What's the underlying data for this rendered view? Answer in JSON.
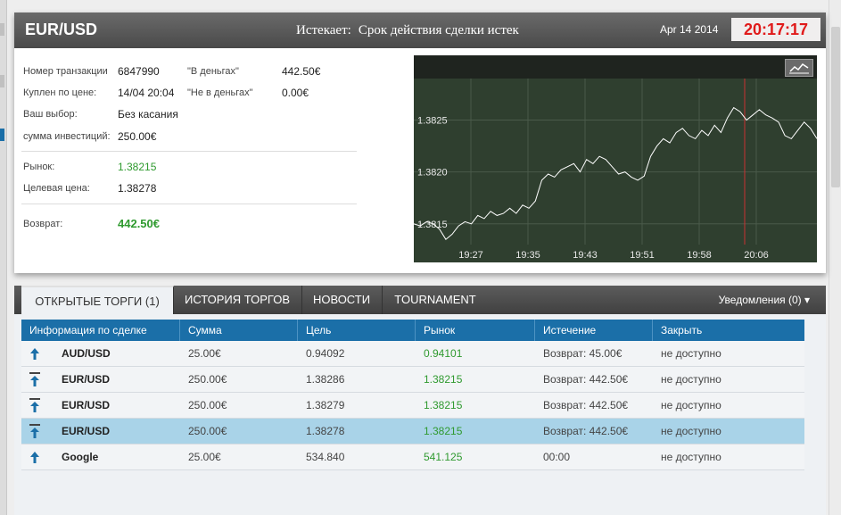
{
  "header": {
    "pair": "EUR/USD",
    "expires_label": "Истекает:",
    "expires_text": "Срок действия сделки истек",
    "date": "Apr 14 2014",
    "clock": "20:17:17"
  },
  "details": {
    "txn_label": "Номер транзакции",
    "txn_value": "6847990",
    "bought_label": "Куплен по цене:",
    "bought_value": "14/04 20:04",
    "choice_label": "Ваш выбор:",
    "choice_value": "Без касания",
    "invest_label": "сумма инвестиций:",
    "invest_value": "250.00€",
    "in_money_label": "\"В деньгах\"",
    "in_money_value": "442.50€",
    "out_money_label": "\"Не в деньгах\"",
    "out_money_value": "0.00€",
    "market_label": "Рынок:",
    "market_value": "1.38215",
    "target_label": "Целевая цена:",
    "target_value": "1.38278",
    "return_label": "Возврат:",
    "return_value": "442.50€"
  },
  "chart_data": {
    "type": "line",
    "y_ticks": [
      "1.3825",
      "1.3820",
      "1.3815"
    ],
    "x_ticks": [
      "19:27",
      "19:35",
      "19:43",
      "19:51",
      "19:58",
      "20:06"
    ],
    "ylim": [
      1.3813,
      1.3829
    ],
    "marker_x": "20:04",
    "series": [
      {
        "values": [
          1.3815,
          1.38148,
          1.38152,
          1.3815,
          1.38145,
          1.38135,
          1.3814,
          1.38148,
          1.38152,
          1.3815,
          1.38158,
          1.38155,
          1.38162,
          1.38158,
          1.3816,
          1.38165,
          1.3816,
          1.38168,
          1.38165,
          1.38172,
          1.38192,
          1.38198,
          1.38195,
          1.38202,
          1.38205,
          1.38208,
          1.382,
          1.38212,
          1.38208,
          1.38215,
          1.38212,
          1.38205,
          1.38198,
          1.382,
          1.38195,
          1.38192,
          1.38196,
          1.38215,
          1.38225,
          1.38232,
          1.38228,
          1.38238,
          1.38242,
          1.38235,
          1.38232,
          1.3824,
          1.38235,
          1.38245,
          1.38238,
          1.38252,
          1.38262,
          1.38258,
          1.3825,
          1.38255,
          1.3826,
          1.38255,
          1.38252,
          1.38248,
          1.38235,
          1.38232,
          1.3824,
          1.38248,
          1.38242,
          1.38232
        ]
      }
    ]
  },
  "tabs": [
    {
      "label": "ОТКРЫТЫЕ ТОРГИ (1)"
    },
    {
      "label": "ИСТОРИЯ ТОРГОВ"
    },
    {
      "label": "НОВОСТИ"
    },
    {
      "label": "TOURNAMENT"
    }
  ],
  "notifications": "Уведомления (0) ▾",
  "table": {
    "columns": [
      "Информация по сделке",
      "Сумма",
      "Цель",
      "Рынок",
      "Истечение",
      "Закрыть"
    ],
    "rows": [
      {
        "asset": "AUD/USD",
        "amount": "25.00€",
        "target": "0.94092",
        "market": "0.94101",
        "expiry": "Возврат: 45.00€",
        "close": "не доступно",
        "arrow": "up"
      },
      {
        "asset": "EUR/USD",
        "amount": "250.00€",
        "target": "1.38286",
        "market": "1.38215",
        "expiry": "Возврат: 442.50€",
        "close": "не доступно",
        "arrow": "bar-up"
      },
      {
        "asset": "EUR/USD",
        "amount": "250.00€",
        "target": "1.38279",
        "market": "1.38215",
        "expiry": "Возврат: 442.50€",
        "close": "не доступно",
        "arrow": "bar-up"
      },
      {
        "asset": "EUR/USD",
        "amount": "250.00€",
        "target": "1.38278",
        "market": "1.38215",
        "expiry": "Возврат: 442.50€",
        "close": "не доступно",
        "arrow": "bar-up"
      },
      {
        "asset": "Google",
        "amount": "25.00€",
        "target": "534.840",
        "market": "541.125",
        "expiry": "00:00",
        "close": "не доступно",
        "arrow": "up"
      }
    ]
  },
  "colors": {
    "accent": "#1b6fa8",
    "green": "#2f9a2f",
    "clock": "#e01a1a",
    "selected_row": "#a9d3e8"
  }
}
